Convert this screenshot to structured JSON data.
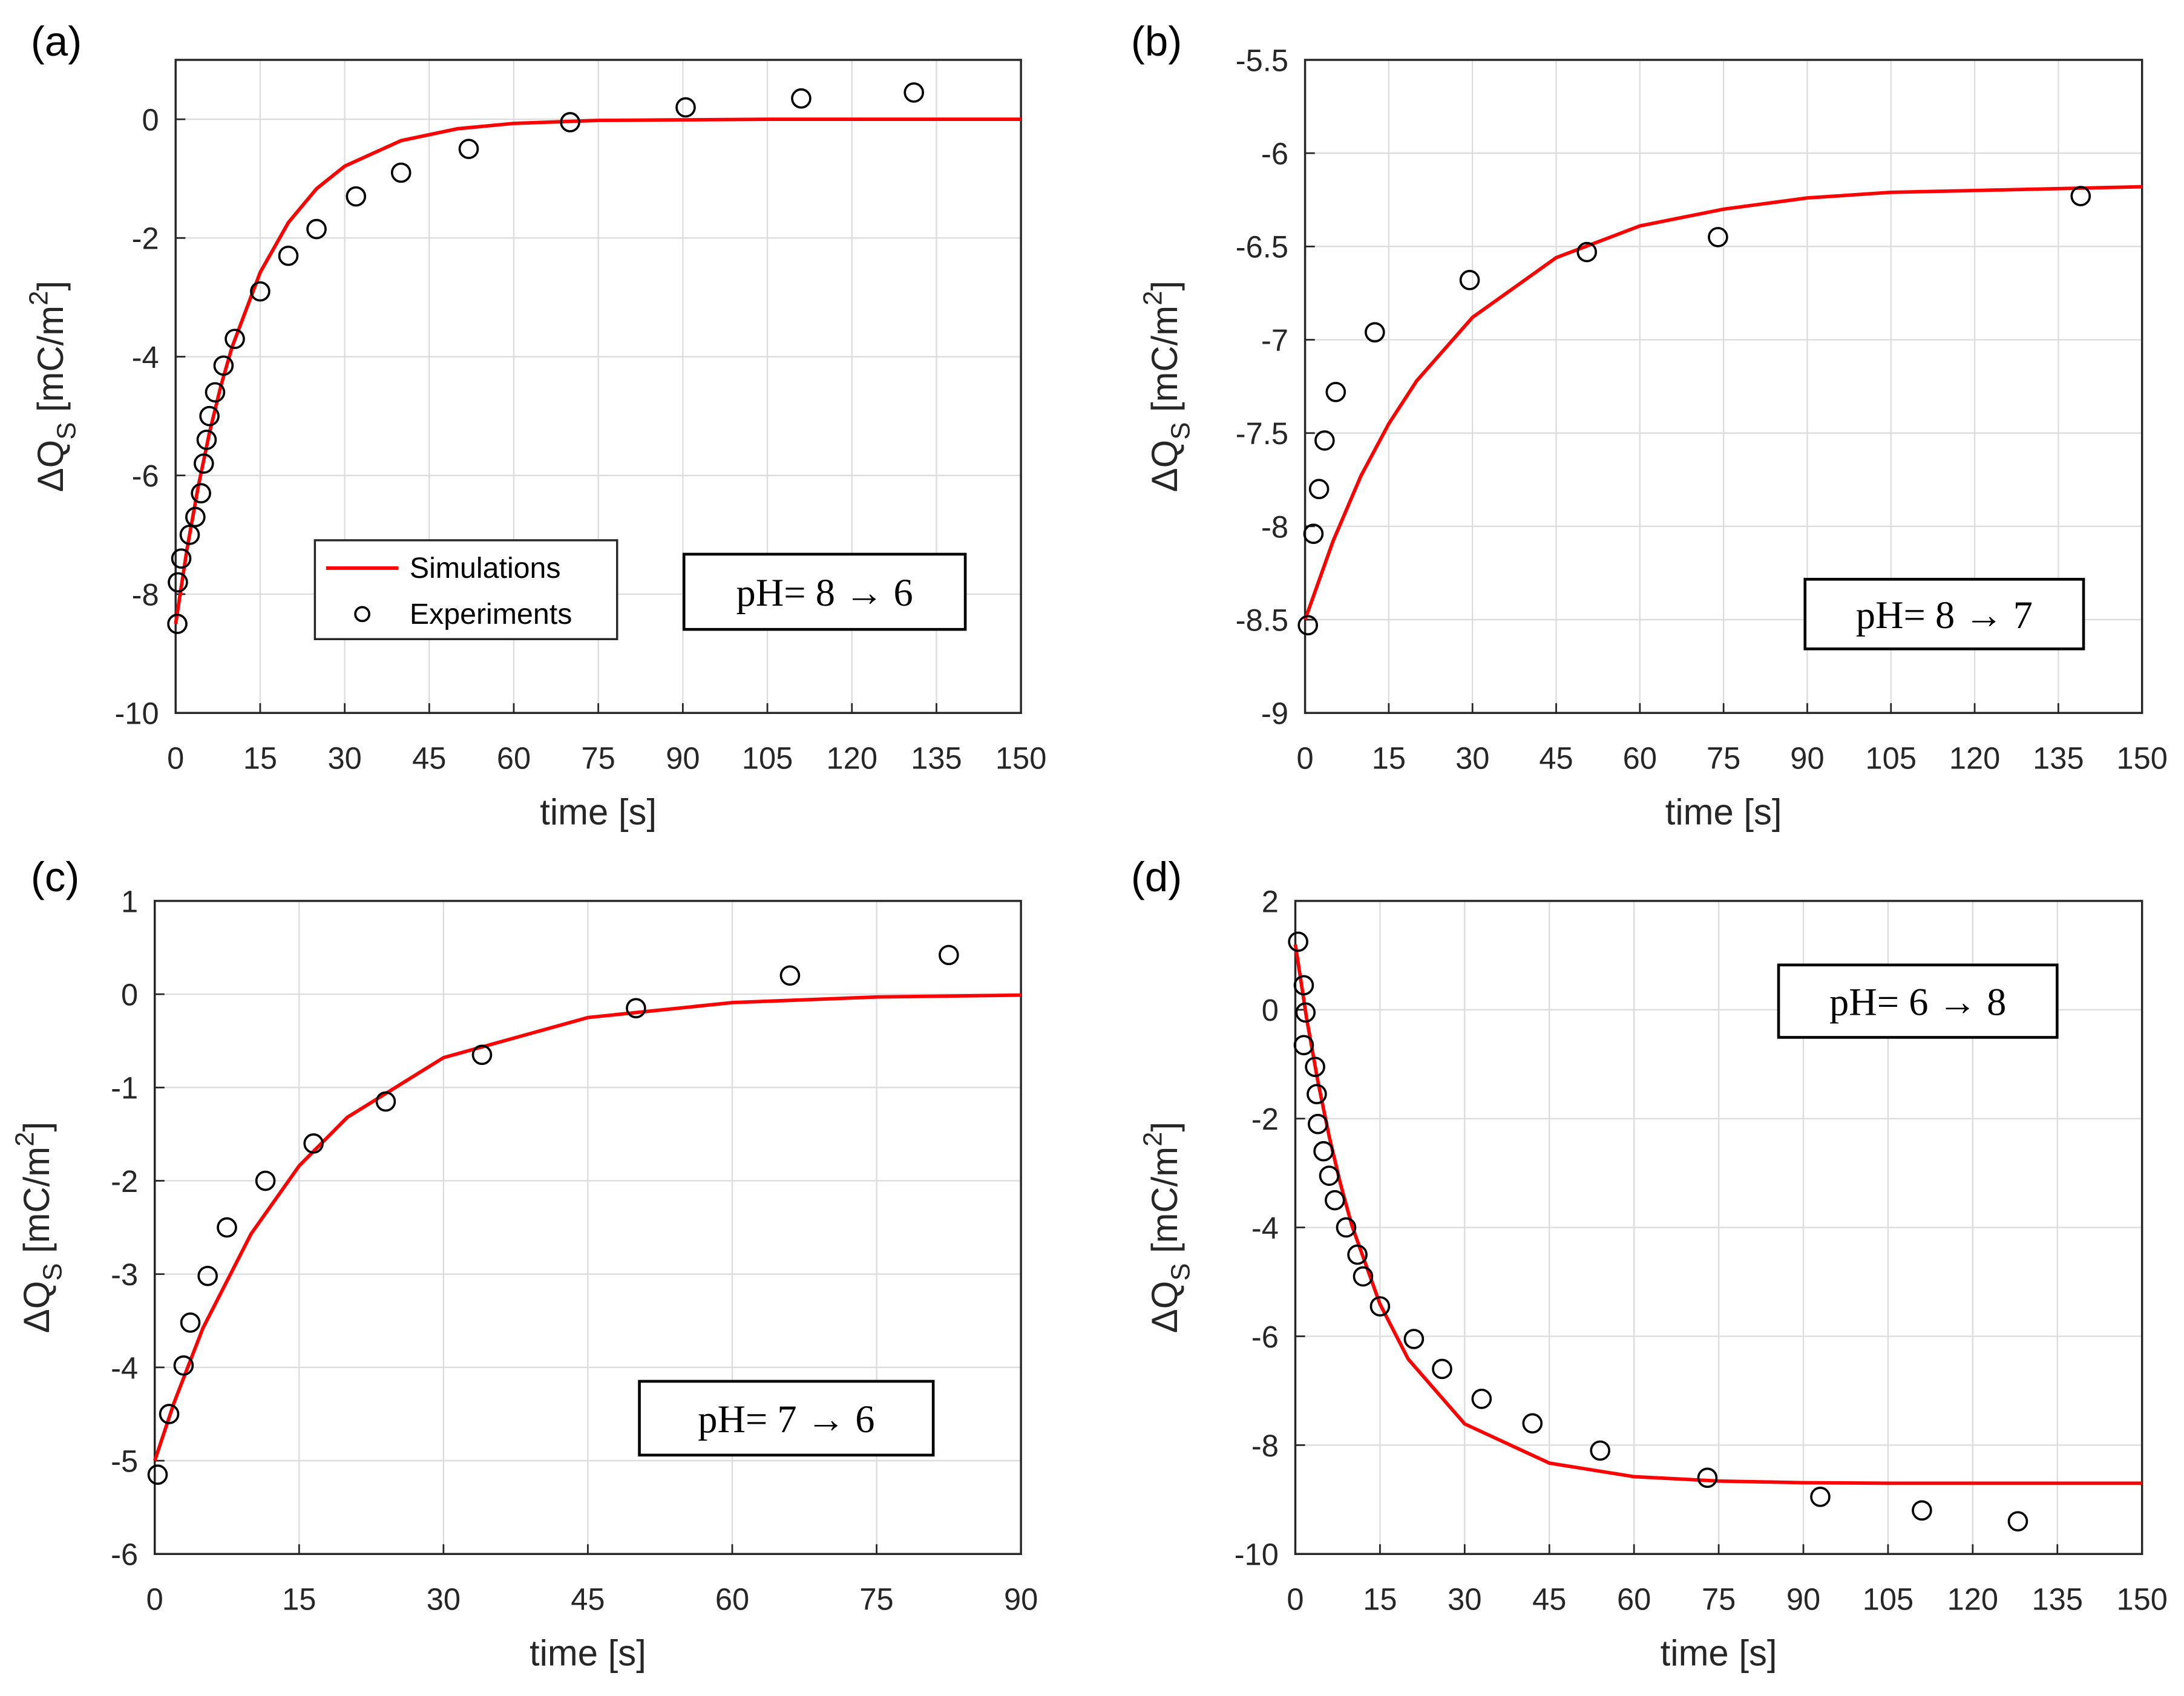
{
  "chart_data": [
    {
      "type": "line",
      "panel": "(a)",
      "xlabel": "time [s]",
      "ylabel": [
        "ΔQ",
        "S",
        " [mC/m",
        "2",
        "]"
      ],
      "annotation": "pH= 8 → 6",
      "grid": true,
      "legend": "lower left",
      "xlim": [
        0,
        150
      ],
      "xticks": [
        0,
        15,
        30,
        45,
        60,
        75,
        90,
        105,
        120,
        135,
        150
      ],
      "ylim": [
        -10,
        1
      ],
      "yticks": [
        -10,
        -8,
        -6,
        -4,
        -2,
        0
      ],
      "series": [
        {
          "name": "Simulations",
          "type": "line",
          "color": "#ff0000",
          "x": [
            0,
            2,
            4,
            6,
            8,
            10,
            15,
            20,
            25,
            30,
            40,
            50,
            60,
            75,
            90,
            105,
            120,
            135,
            150
          ],
          "values": [
            -8.5,
            -7.25,
            -6.19,
            -5.28,
            -4.5,
            -3.84,
            -2.58,
            -1.74,
            -1.17,
            -0.79,
            -0.36,
            -0.16,
            -0.07,
            -0.02,
            -0.01,
            0,
            0,
            0,
            0
          ]
        },
        {
          "name": "Experiments",
          "type": "scatter",
          "color": "#000000",
          "x": [
            0.3,
            0.4,
            1,
            2.5,
            3.5,
            4.5,
            5,
            5.5,
            6,
            7,
            8.5,
            10.5,
            15,
            20,
            25,
            32,
            40,
            52,
            70,
            90.5,
            111,
            131
          ],
          "values": [
            -8.5,
            -7.8,
            -7.4,
            -7.0,
            -6.7,
            -6.3,
            -5.8,
            -5.4,
            -5.0,
            -4.6,
            -4.15,
            -3.7,
            -2.9,
            -2.3,
            -1.85,
            -1.3,
            -0.9,
            -0.5,
            -0.05,
            0.2,
            0.35,
            0.45
          ]
        }
      ]
    },
    {
      "type": "line",
      "panel": "(b)",
      "xlabel": "time [s]",
      "ylabel": [
        "ΔQ",
        "S",
        " [mC/m",
        "2",
        "]"
      ],
      "annotation": "pH= 8 → 7",
      "grid": true,
      "xlim": [
        0,
        150
      ],
      "xticks": [
        0,
        15,
        30,
        45,
        60,
        75,
        90,
        105,
        120,
        135,
        150
      ],
      "ylim": [
        -9,
        -5.5
      ],
      "yticks": [
        -9,
        -8.5,
        -8,
        -7.5,
        -7,
        -6.5,
        -6,
        -5.5
      ],
      "series": [
        {
          "type": "line",
          "color": "#ff0000",
          "x": [
            0,
            5,
            10,
            15,
            20,
            30,
            45,
            60,
            75,
            90,
            105,
            120,
            135,
            150
          ],
          "values": [
            -8.5,
            -8.08,
            -7.73,
            -7.45,
            -7.22,
            -6.88,
            -6.56,
            -6.39,
            -6.3,
            -6.24,
            -6.21,
            -6.2,
            -6.19,
            -6.18
          ]
        },
        {
          "type": "scatter",
          "color": "#000000",
          "x": [
            0.5,
            1.5,
            2.5,
            3.5,
            5.5,
            12.5,
            29.5,
            50.5,
            74,
            139
          ],
          "values": [
            -8.53,
            -8.04,
            -7.8,
            -7.54,
            -7.28,
            -6.96,
            -6.68,
            -6.53,
            -6.45,
            -6.23
          ]
        }
      ]
    },
    {
      "type": "line",
      "panel": "(c)",
      "xlabel": "time [s]",
      "ylabel": [
        "ΔQ",
        "S",
        " [mC/m",
        "2",
        "]"
      ],
      "annotation": "pH= 7 → 6",
      "grid": true,
      "xlim": [
        0,
        90
      ],
      "xticks": [
        0,
        15,
        30,
        45,
        60,
        75,
        90
      ],
      "ylim": [
        -6,
        1
      ],
      "yticks": [
        -6,
        -5,
        -4,
        -3,
        -2,
        -1,
        0,
        1
      ],
      "series": [
        {
          "type": "line",
          "color": "#ff0000",
          "x": [
            0,
            2,
            5,
            10,
            15,
            20,
            30,
            45,
            60,
            75,
            90
          ],
          "values": [
            -5,
            -4.38,
            -3.58,
            -2.57,
            -1.84,
            -1.32,
            -0.68,
            -0.25,
            -0.09,
            -0.03,
            -0.01
          ]
        },
        {
          "type": "scatter",
          "color": "#000000",
          "x": [
            0.3,
            1.5,
            3,
            3.7,
            5.5,
            7.5,
            11.5,
            16.5,
            24,
            34,
            50,
            66,
            82.5
          ],
          "values": [
            -5.15,
            -4.5,
            -3.98,
            -3.52,
            -3.02,
            -2.5,
            -2.0,
            -1.6,
            -1.15,
            -0.65,
            -0.15,
            0.2,
            0.42
          ]
        }
      ]
    },
    {
      "type": "line",
      "panel": "(d)",
      "xlabel": "time [s]",
      "ylabel": [
        "ΔQ",
        "S",
        " [mC/m",
        "2",
        "]"
      ],
      "annotation": "pH= 6 → 8",
      "grid": true,
      "xlim": [
        0,
        150
      ],
      "xticks": [
        0,
        15,
        30,
        45,
        60,
        75,
        90,
        105,
        120,
        135,
        150
      ],
      "ylim": [
        -10,
        2
      ],
      "yticks": [
        -10,
        -8,
        -6,
        -4,
        -2,
        0,
        2
      ],
      "series": [
        {
          "type": "line",
          "color": "#ff0000",
          "x": [
            0,
            2,
            4,
            6,
            8,
            10,
            15,
            20,
            30,
            45,
            60,
            75,
            90,
            105,
            120,
            150
          ],
          "values": [
            1.2,
            -0.16,
            -1.32,
            -2.33,
            -3.2,
            -3.96,
            -5.41,
            -6.42,
            -7.61,
            -8.33,
            -8.58,
            -8.66,
            -8.69,
            -8.7,
            -8.7,
            -8.7
          ]
        },
        {
          "type": "scatter",
          "color": "#000000",
          "x": [
            0.5,
            1.5,
            1.8,
            1.5,
            3.5,
            3.8,
            4,
            5,
            6,
            7,
            9,
            11,
            12,
            15,
            21,
            26,
            33,
            42,
            54,
            73,
            93,
            111,
            128
          ],
          "values": [
            1.25,
            0.45,
            -0.05,
            -0.65,
            -1.05,
            -1.55,
            -2.1,
            -2.6,
            -3.05,
            -3.5,
            -4.0,
            -4.5,
            -4.9,
            -5.45,
            -6.05,
            -6.6,
            -7.15,
            -7.6,
            -8.1,
            -8.6,
            -8.95,
            -9.2,
            -9.4
          ]
        }
      ]
    }
  ]
}
